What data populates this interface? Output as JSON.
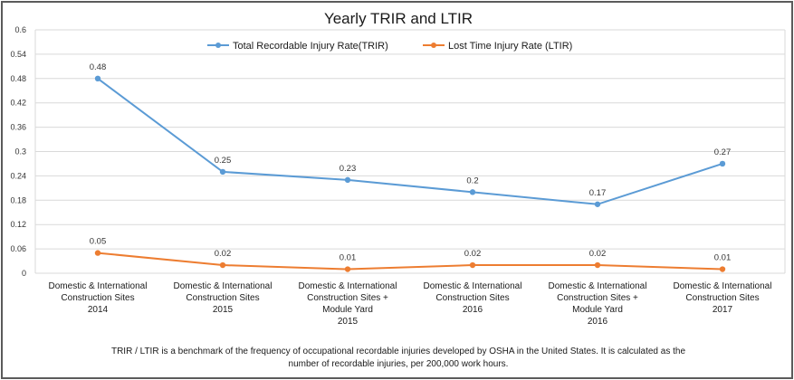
{
  "chart_data": {
    "type": "line",
    "title": "Yearly TRIR and LTIR",
    "categories": [
      [
        "Domestic & International",
        "Construction Sites",
        "2014"
      ],
      [
        "Domestic & International",
        "Construction Sites",
        "2015"
      ],
      [
        "Domestic & International",
        "Construction Sites +",
        "Module Yard",
        "2015"
      ],
      [
        "Domestic & International",
        "Construction Sites",
        "2016"
      ],
      [
        "Domestic & International",
        "Construction Sites +",
        "Module Yard",
        "2016"
      ],
      [
        "Domestic & International",
        "Construction Sites",
        "2017"
      ]
    ],
    "series": [
      {
        "name": "Total Recordable Injury Rate(TRIR)",
        "color": "#5b9bd5",
        "values": [
          0.48,
          0.25,
          0.23,
          0.2,
          0.17,
          0.27
        ],
        "labels": [
          "0.48",
          "0.25",
          "0.23",
          "0.2",
          "0.17",
          "0.27"
        ]
      },
      {
        "name": "Lost Time Injury Rate (LTIR)",
        "color": "#ed7d31",
        "values": [
          0.05,
          0.02,
          0.01,
          0.02,
          0.02,
          0.01
        ],
        "labels": [
          "0.05",
          "0.02",
          "0.01",
          "0.02",
          "0.02",
          "0.01"
        ]
      }
    ],
    "ylim": [
      0,
      0.6
    ],
    "yticks": [
      0,
      0.06,
      0.12,
      0.18,
      0.24,
      0.3,
      0.36,
      0.42,
      0.48,
      0.54,
      0.6
    ],
    "ytick_labels": [
      "0",
      "0.06",
      "0.12",
      "0.18",
      "0.24",
      "0.3",
      "0.36",
      "0.42",
      "0.48",
      "0.54",
      "0.6"
    ],
    "grid": true,
    "legend_position": "top",
    "footnote": [
      "TRIR / LTIR is a benchmark of the frequency of occupational recordable injuries developed by OSHA in the United States. It is calculated as the",
      "number of recordable injuries, per 200,000 work hours."
    ]
  }
}
